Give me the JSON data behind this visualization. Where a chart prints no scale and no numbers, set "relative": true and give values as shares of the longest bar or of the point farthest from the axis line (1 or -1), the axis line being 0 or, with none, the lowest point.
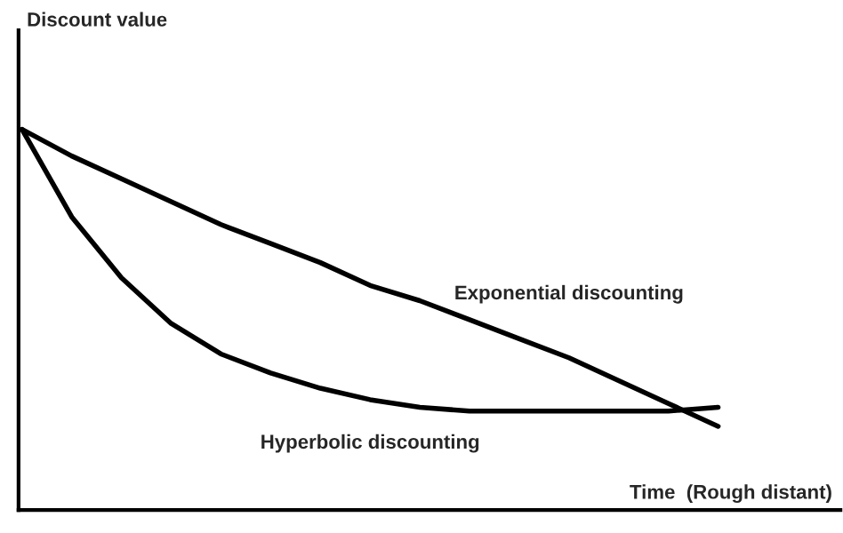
{
  "chart_data": {
    "type": "line",
    "relative": true,
    "xlabel": "Time  (Rough distant)",
    "annotations": [
      "Discount value"
    ],
    "categories": [
      null,
      null,
      null,
      null,
      null,
      null,
      null,
      null,
      null,
      null,
      null,
      null,
      null,
      null,
      null
    ],
    "series": [
      {
        "name": "Exponential discounting",
        "color": "#000000",
        "values": [
          1,
          0.93,
          0.87,
          0.81,
          0.75,
          0.7,
          0.65,
          0.59,
          0.55,
          0.5,
          0.45,
          0.4,
          0.34,
          0.28,
          0.22
        ]
      },
      {
        "name": "Hyperbolic discounting",
        "color": "#000000",
        "values": [
          1,
          0.77,
          0.61,
          0.49,
          0.41,
          0.36,
          0.32,
          0.29,
          0.27,
          0.26,
          0.26,
          0.26,
          0.26,
          0.26,
          0.27
        ]
      }
    ],
    "legend": false,
    "marker": "none",
    "line_style": "solid"
  }
}
